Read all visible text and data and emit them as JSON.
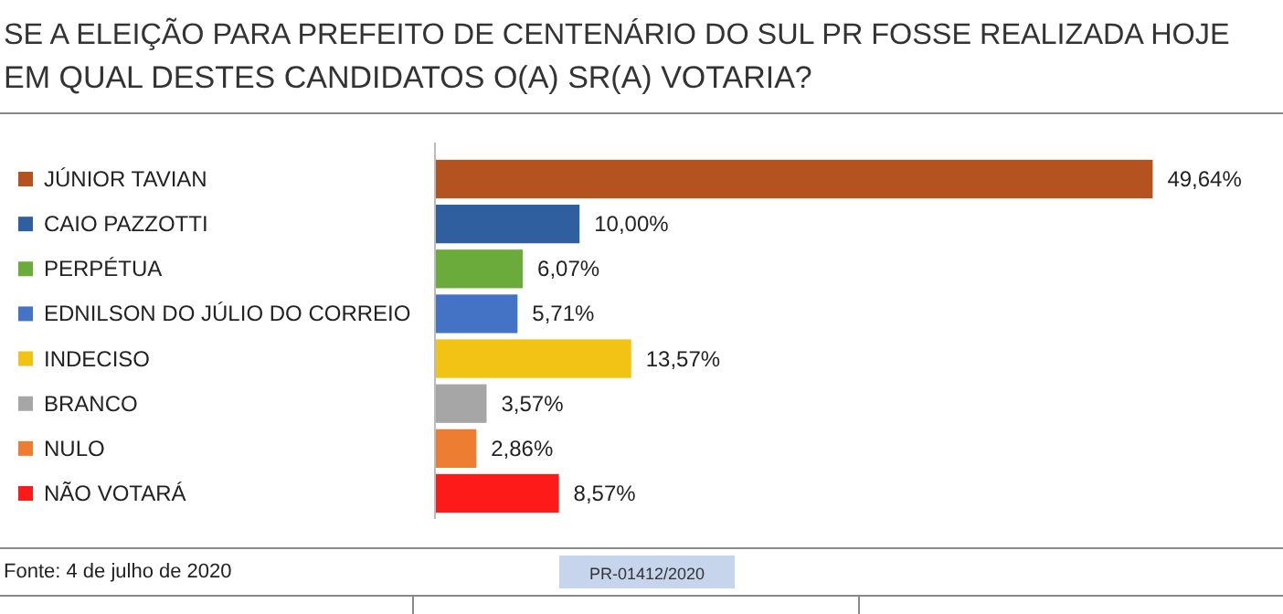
{
  "chart_data": {
    "type": "bar",
    "orientation": "horizontal",
    "title": "SE A ELEIÇÃO PARA PREFEITO DE CENTENÁRIO DO SUL PR FOSSE REALIZADA HOJE",
    "subtitle": "EM QUAL DESTES CANDIDATOS O(A) SR(A) VOTARIA?",
    "categories": [
      "JÚNIOR TAVIAN",
      "CAIO PAZZOTTI",
      "PERPÉTUA",
      "EDNILSON DO JÚLIO DO CORREIO",
      "INDECISO",
      "BRANCO",
      "NULO",
      "NÃO VOTARÁ"
    ],
    "values": [
      49.64,
      10.0,
      6.07,
      5.71,
      13.57,
      3.57,
      2.86,
      8.57
    ],
    "colors": [
      "#b4531f",
      "#2f5f9e",
      "#6aab3c",
      "#4472c4",
      "#f2c314",
      "#a6a6a6",
      "#ed7d31",
      "#ff1a1a"
    ],
    "value_labels": [
      "49,64%",
      "10,00%",
      "6,07%",
      "5,71%",
      "13,57%",
      "3,57%",
      "2,86%",
      "8,57%"
    ],
    "annotations": [
      "Fonte: 4 de julho de 2020",
      "PR-01412/2020"
    ]
  }
}
